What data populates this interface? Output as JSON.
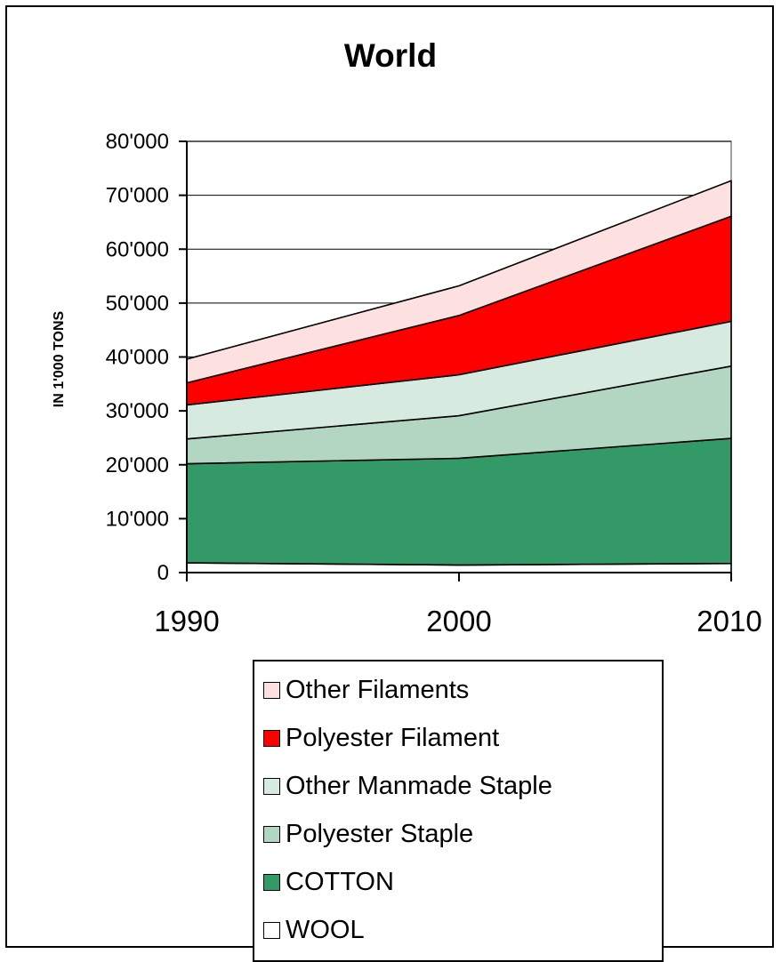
{
  "chart_data": {
    "type": "area",
    "stacked": true,
    "title": "World",
    "ylabel": "IN 1'000 TONS",
    "xlabel": "",
    "categories": [
      "1990",
      "2000",
      "2010"
    ],
    "ylim": [
      0,
      80000
    ],
    "yticks": [
      "0",
      "10'000",
      "20'000",
      "30'000",
      "40'000",
      "50'000",
      "60'000",
      "70'000",
      "80'000"
    ],
    "ytick_values": [
      0,
      10000,
      20000,
      30000,
      40000,
      50000,
      60000,
      70000,
      80000
    ],
    "grid": true,
    "legend_position": "bottom",
    "series": [
      {
        "name": "WOOL",
        "values": [
          1800,
          1400,
          1700
        ],
        "color": "#ffffff"
      },
      {
        "name": "COTTON",
        "values": [
          18400,
          19800,
          23200
        ],
        "color": "#339966"
      },
      {
        "name": "Polyester Staple",
        "values": [
          4600,
          7900,
          13400
        ],
        "color": "#b3d6c3"
      },
      {
        "name": "Other Manmade Staple",
        "values": [
          6300,
          7600,
          8300
        ],
        "color": "#d6eadf"
      },
      {
        "name": "Polyester Filament",
        "values": [
          4100,
          11000,
          19500
        ],
        "color": "#ff0000"
      },
      {
        "name": "Other Filaments",
        "values": [
          4400,
          5500,
          6600
        ],
        "color": "#fde0e0"
      }
    ]
  }
}
